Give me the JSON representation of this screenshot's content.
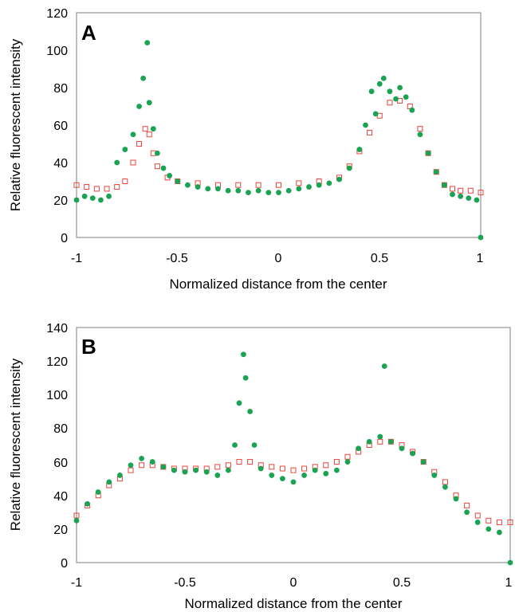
{
  "chart_data": [
    {
      "type": "scatter",
      "panel_label": "A",
      "xlabel": "Normalized distance from the center",
      "ylabel": "Relative fluorescent intensity",
      "xlim": [
        -1,
        1
      ],
      "ylim": [
        0,
        120
      ],
      "x_ticks": [
        "-1",
        "-0.5",
        "0",
        "0.5",
        "1"
      ],
      "y_ticks": [
        "0",
        "20",
        "40",
        "60",
        "80",
        "100",
        "120"
      ],
      "grid": false,
      "series": [
        {
          "marker": "filled-circle",
          "color": "#1aa352",
          "x": [
            -1.0,
            -0.96,
            -0.92,
            -0.88,
            -0.84,
            -0.8,
            -0.76,
            -0.72,
            -0.69,
            -0.67,
            -0.65,
            -0.64,
            -0.62,
            -0.6,
            -0.57,
            -0.54,
            -0.5,
            -0.45,
            -0.4,
            -0.35,
            -0.3,
            -0.25,
            -0.2,
            -0.15,
            -0.1,
            -0.05,
            0.0,
            0.05,
            0.1,
            0.15,
            0.2,
            0.25,
            0.3,
            0.35,
            0.4,
            0.43,
            0.46,
            0.48,
            0.5,
            0.52,
            0.55,
            0.58,
            0.6,
            0.63,
            0.66,
            0.7,
            0.74,
            0.78,
            0.82,
            0.86,
            0.9,
            0.94,
            0.98,
            1.0
          ],
          "y": [
            20,
            22,
            21,
            20,
            22,
            40,
            47,
            55,
            70,
            85,
            104,
            72,
            58,
            45,
            37,
            33,
            30,
            28,
            27,
            26,
            26,
            25,
            25,
            24,
            25,
            24,
            24,
            25,
            26,
            27,
            28,
            29,
            31,
            37,
            47,
            60,
            78,
            66,
            82,
            85,
            78,
            74,
            80,
            75,
            68,
            55,
            45,
            35,
            28,
            23,
            22,
            21,
            20,
            0
          ]
        },
        {
          "marker": "open-square",
          "color": "#e8453c",
          "x": [
            -1.0,
            -0.95,
            -0.9,
            -0.85,
            -0.8,
            -0.76,
            -0.72,
            -0.69,
            -0.66,
            -0.64,
            -0.62,
            -0.6,
            -0.55,
            -0.5,
            -0.4,
            -0.3,
            -0.2,
            -0.1,
            0.0,
            0.1,
            0.2,
            0.3,
            0.35,
            0.4,
            0.45,
            0.5,
            0.55,
            0.6,
            0.65,
            0.7,
            0.74,
            0.78,
            0.82,
            0.86,
            0.9,
            0.95,
            1.0
          ],
          "y": [
            28,
            27,
            26,
            26,
            27,
            30,
            40,
            50,
            58,
            55,
            45,
            38,
            32,
            30,
            29,
            28,
            28,
            28,
            28,
            29,
            30,
            32,
            38,
            46,
            56,
            65,
            72,
            73,
            70,
            58,
            45,
            35,
            28,
            26,
            25,
            25,
            24
          ]
        }
      ]
    },
    {
      "type": "scatter",
      "panel_label": "B",
      "xlabel": "Normalized distance from the center",
      "ylabel": "Relative fluorescent intensity",
      "xlim": [
        -1,
        1
      ],
      "ylim": [
        0,
        140
      ],
      "x_ticks": [
        "-1",
        "-0.5",
        "0",
        "0.5",
        "1"
      ],
      "y_ticks": [
        "0",
        "20",
        "40",
        "60",
        "80",
        "100",
        "120",
        "140"
      ],
      "grid": false,
      "series": [
        {
          "marker": "filled-circle",
          "color": "#1aa352",
          "x": [
            -1.0,
            -0.95,
            -0.9,
            -0.85,
            -0.8,
            -0.75,
            -0.7,
            -0.65,
            -0.6,
            -0.55,
            -0.5,
            -0.45,
            -0.4,
            -0.35,
            -0.3,
            -0.27,
            -0.25,
            -0.23,
            -0.22,
            -0.2,
            -0.18,
            -0.15,
            -0.1,
            -0.05,
            0.0,
            0.05,
            0.1,
            0.15,
            0.2,
            0.25,
            0.3,
            0.35,
            0.4,
            0.42,
            0.45,
            0.5,
            0.55,
            0.6,
            0.65,
            0.7,
            0.75,
            0.8,
            0.85,
            0.9,
            0.95,
            1.0
          ],
          "y": [
            25,
            35,
            42,
            48,
            52,
            58,
            62,
            60,
            57,
            55,
            54,
            55,
            54,
            52,
            55,
            70,
            95,
            124,
            110,
            90,
            70,
            56,
            52,
            50,
            48,
            52,
            55,
            53,
            55,
            60,
            68,
            72,
            75,
            117,
            72,
            68,
            65,
            60,
            52,
            45,
            38,
            30,
            24,
            20,
            18,
            0
          ]
        },
        {
          "marker": "open-square",
          "color": "#e8453c",
          "x": [
            -1.0,
            -0.95,
            -0.9,
            -0.85,
            -0.8,
            -0.75,
            -0.7,
            -0.65,
            -0.6,
            -0.55,
            -0.5,
            -0.45,
            -0.4,
            -0.35,
            -0.3,
            -0.25,
            -0.2,
            -0.15,
            -0.1,
            -0.05,
            0.0,
            0.05,
            0.1,
            0.15,
            0.2,
            0.25,
            0.3,
            0.35,
            0.4,
            0.45,
            0.5,
            0.55,
            0.6,
            0.65,
            0.7,
            0.75,
            0.8,
            0.85,
            0.9,
            0.95,
            1.0
          ],
          "y": [
            28,
            34,
            40,
            46,
            50,
            55,
            58,
            58,
            57,
            56,
            56,
            56,
            56,
            57,
            58,
            60,
            60,
            58,
            57,
            56,
            55,
            56,
            57,
            58,
            60,
            63,
            66,
            70,
            72,
            72,
            70,
            66,
            60,
            54,
            48,
            40,
            34,
            28,
            25,
            24,
            24
          ]
        }
      ]
    }
  ]
}
